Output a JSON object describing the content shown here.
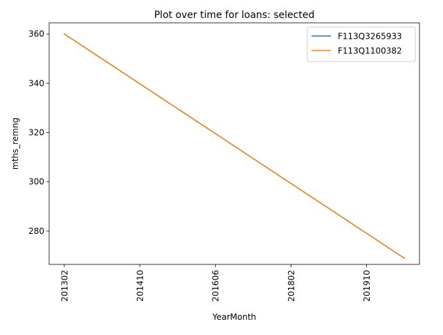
{
  "chart_data": {
    "type": "line",
    "title": "Plot over time for loans: selected",
    "xlabel": "YearMonth",
    "ylabel": "mths_remng",
    "x_start": "2013-02",
    "x_end": "2020-08",
    "xlim": [
      "2012-10",
      "2020-12"
    ],
    "ylim": [
      266.5,
      364.5
    ],
    "x_ticks": [
      "201302",
      "201410",
      "201606",
      "201802",
      "201910"
    ],
    "y_ticks": [
      280,
      300,
      320,
      340,
      360
    ],
    "grid": false,
    "legend_position": "top-right",
    "series": [
      {
        "name": "F113Q3265933",
        "color": "#1f77b4",
        "y_start": 360,
        "y_end": 269
      },
      {
        "name": "F113Q1100382",
        "color": "#ff7f0e",
        "y_start": 360,
        "y_end": 269
      }
    ]
  }
}
